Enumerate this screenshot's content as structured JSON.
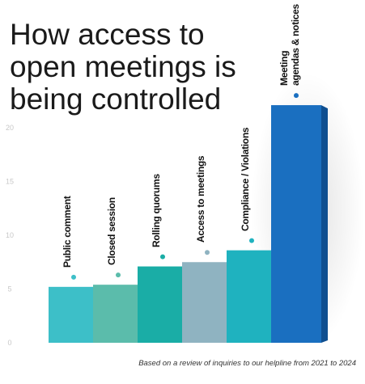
{
  "chart_data": {
    "type": "bar3d",
    "title_lines": [
      "How access to",
      "open meetings is",
      "being controlled"
    ],
    "categories": [
      "Public comment",
      "Closed session",
      "Rolling quorums",
      "Access to meetings",
      "Compliance / Violations",
      "Meeting\nagendas & notices"
    ],
    "values": [
      5.2,
      5.4,
      7.1,
      7.5,
      8.6,
      22.1
    ],
    "colors": [
      "#3dbfc8",
      "#5bbcab",
      "#1aada6",
      "#8fb3c1",
      "#1fb2bf",
      "#1a6fc0"
    ],
    "side_colors": [
      "#2b98a0",
      "#3f9987",
      "#12857f",
      "#6d8f9c",
      "#168d98",
      "#0f4f90"
    ],
    "ylim": [
      0,
      25
    ],
    "yticks": [
      0,
      5,
      10,
      15,
      20
    ],
    "grid": false,
    "footnote": "Based on a review of inquiries to our helpline from 2021 to 2024"
  }
}
